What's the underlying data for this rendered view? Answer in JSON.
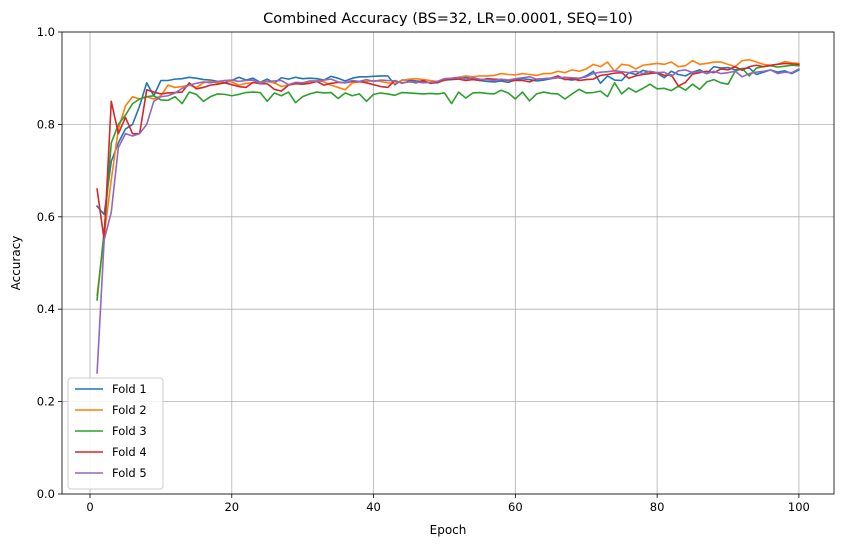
{
  "chart_data": {
    "type": "line",
    "title": "Combined Accuracy (BS=32, LR=0.0001, SEQ=10)",
    "xlabel": "Epoch",
    "ylabel": "Accuracy",
    "xlim": [
      -3.95,
      104.95
    ],
    "ylim": [
      0.0,
      1.0
    ],
    "xticks": [
      0,
      20,
      40,
      60,
      80,
      100
    ],
    "yticks": [
      0.0,
      0.2,
      0.4,
      0.6,
      0.8,
      1.0
    ],
    "xtick_labels": [
      "0",
      "20",
      "40",
      "60",
      "80",
      "100"
    ],
    "ytick_labels": [
      "0.0",
      "0.2",
      "0.4",
      "0.6",
      "0.8",
      "1.0"
    ],
    "grid": true,
    "legend_position": "lower-left",
    "x_start": 1,
    "series": [
      {
        "name": "Fold 1",
        "color": "#1f77b4",
        "values": [
          0.623,
          0.605,
          0.72,
          0.76,
          0.79,
          0.8,
          0.84,
          0.89,
          0.862,
          0.895,
          0.895,
          0.898,
          0.899,
          0.902,
          0.9,
          0.897,
          0.896,
          0.893,
          0.89,
          0.895,
          0.902,
          0.896,
          0.9,
          0.891,
          0.898,
          0.889,
          0.901,
          0.898,
          0.902,
          0.899,
          0.9,
          0.899,
          0.896,
          0.904,
          0.9,
          0.894,
          0.9,
          0.903,
          0.903,
          0.904,
          0.905,
          0.905,
          0.886,
          0.896,
          0.896,
          0.894,
          0.893,
          0.89,
          0.89,
          0.896,
          0.897,
          0.898,
          0.902,
          0.899,
          0.895,
          0.893,
          0.892,
          0.894,
          0.891,
          0.896,
          0.899,
          0.897,
          0.894,
          0.896,
          0.899,
          0.901,
          0.898,
          0.896,
          0.899,
          0.905,
          0.915,
          0.889,
          0.905,
          0.896,
          0.895,
          0.912,
          0.908,
          0.917,
          0.913,
          0.911,
          0.901,
          0.915,
          0.908,
          0.905,
          0.913,
          0.918,
          0.91,
          0.925,
          0.922,
          0.923,
          0.918,
          0.921,
          0.922,
          0.908,
          0.913,
          0.918,
          0.913,
          0.916,
          0.91,
          0.918
        ]
      },
      {
        "name": "Fold 2",
        "color": "#ff7f0e",
        "values": [
          0.43,
          0.56,
          0.68,
          0.79,
          0.84,
          0.86,
          0.855,
          0.86,
          0.855,
          0.862,
          0.885,
          0.88,
          0.882,
          0.885,
          0.88,
          0.89,
          0.893,
          0.89,
          0.895,
          0.892,
          0.885,
          0.889,
          0.89,
          0.891,
          0.893,
          0.89,
          0.882,
          0.885,
          0.89,
          0.888,
          0.893,
          0.895,
          0.892,
          0.885,
          0.88,
          0.875,
          0.89,
          0.892,
          0.893,
          0.895,
          0.893,
          0.89,
          0.889,
          0.895,
          0.898,
          0.899,
          0.897,
          0.895,
          0.893,
          0.895,
          0.899,
          0.902,
          0.905,
          0.903,
          0.905,
          0.905,
          0.906,
          0.91,
          0.908,
          0.907,
          0.91,
          0.908,
          0.906,
          0.91,
          0.91,
          0.915,
          0.912,
          0.918,
          0.915,
          0.92,
          0.93,
          0.925,
          0.935,
          0.915,
          0.93,
          0.928,
          0.92,
          0.928,
          0.93,
          0.932,
          0.93,
          0.935,
          0.925,
          0.927,
          0.938,
          0.93,
          0.932,
          0.935,
          0.935,
          0.93,
          0.925,
          0.938,
          0.94,
          0.935,
          0.93,
          0.928,
          0.93,
          0.936,
          0.933,
          0.932
        ]
      },
      {
        "name": "Fold 3",
        "color": "#2ca02c",
        "values": [
          0.42,
          0.57,
          0.76,
          0.8,
          0.82,
          0.845,
          0.855,
          0.86,
          0.862,
          0.853,
          0.852,
          0.86,
          0.845,
          0.87,
          0.865,
          0.85,
          0.86,
          0.866,
          0.865,
          0.862,
          0.865,
          0.869,
          0.87,
          0.869,
          0.85,
          0.868,
          0.862,
          0.87,
          0.847,
          0.86,
          0.866,
          0.87,
          0.868,
          0.869,
          0.856,
          0.868,
          0.862,
          0.866,
          0.85,
          0.865,
          0.868,
          0.866,
          0.863,
          0.869,
          0.868,
          0.867,
          0.866,
          0.867,
          0.866,
          0.868,
          0.845,
          0.87,
          0.857,
          0.868,
          0.869,
          0.867,
          0.866,
          0.874,
          0.868,
          0.855,
          0.87,
          0.851,
          0.866,
          0.87,
          0.867,
          0.866,
          0.855,
          0.866,
          0.876,
          0.868,
          0.869,
          0.872,
          0.86,
          0.89,
          0.866,
          0.879,
          0.87,
          0.878,
          0.887,
          0.877,
          0.878,
          0.873,
          0.883,
          0.874,
          0.887,
          0.876,
          0.892,
          0.897,
          0.89,
          0.887,
          0.915,
          0.921,
          0.905,
          0.922,
          0.925,
          0.927,
          0.924,
          0.926,
          0.928,
          0.927
        ]
      },
      {
        "name": "Fold 4",
        "color": "#d62728",
        "values": [
          0.66,
          0.55,
          0.85,
          0.78,
          0.815,
          0.78,
          0.78,
          0.875,
          0.87,
          0.866,
          0.868,
          0.869,
          0.87,
          0.89,
          0.877,
          0.88,
          0.885,
          0.887,
          0.89,
          0.886,
          0.882,
          0.88,
          0.891,
          0.888,
          0.888,
          0.876,
          0.872,
          0.885,
          0.888,
          0.887,
          0.889,
          0.893,
          0.885,
          0.889,
          0.891,
          0.89,
          0.893,
          0.893,
          0.89,
          0.886,
          0.882,
          0.88,
          0.895,
          0.889,
          0.893,
          0.89,
          0.895,
          0.889,
          0.891,
          0.896,
          0.898,
          0.898,
          0.895,
          0.897,
          0.895,
          0.899,
          0.898,
          0.897,
          0.895,
          0.895,
          0.895,
          0.892,
          0.898,
          0.899,
          0.9,
          0.905,
          0.897,
          0.899,
          0.895,
          0.897,
          0.898,
          0.906,
          0.908,
          0.911,
          0.912,
          0.9,
          0.905,
          0.908,
          0.91,
          0.912,
          0.906,
          0.907,
          0.883,
          0.891,
          0.909,
          0.912,
          0.915,
          0.912,
          0.92,
          0.918,
          0.925,
          0.917,
          0.925,
          0.928,
          0.925,
          0.928,
          0.93,
          0.932,
          0.931,
          0.93
        ]
      },
      {
        "name": "Fold 5",
        "color": "#9467bd",
        "values": [
          0.262,
          0.55,
          0.61,
          0.75,
          0.78,
          0.775,
          0.78,
          0.8,
          0.85,
          0.86,
          0.862,
          0.868,
          0.878,
          0.885,
          0.889,
          0.892,
          0.89,
          0.893,
          0.895,
          0.896,
          0.893,
          0.895,
          0.896,
          0.889,
          0.893,
          0.894,
          0.895,
          0.886,
          0.891,
          0.89,
          0.894,
          0.893,
          0.896,
          0.898,
          0.892,
          0.89,
          0.895,
          0.893,
          0.897,
          0.893,
          0.896,
          0.895,
          0.894,
          0.89,
          0.892,
          0.892,
          0.89,
          0.891,
          0.893,
          0.899,
          0.9,
          0.902,
          0.898,
          0.901,
          0.898,
          0.897,
          0.895,
          0.898,
          0.896,
          0.899,
          0.901,
          0.903,
          0.898,
          0.899,
          0.9,
          0.901,
          0.902,
          0.901,
          0.9,
          0.903,
          0.91,
          0.913,
          0.914,
          0.916,
          0.914,
          0.912,
          0.915,
          0.91,
          0.915,
          0.912,
          0.913,
          0.904,
          0.916,
          0.918,
          0.912,
          0.915,
          0.91,
          0.915,
          0.91,
          0.912,
          0.915,
          0.903,
          0.91,
          0.913,
          0.915,
          0.918,
          0.91,
          0.913,
          0.912,
          0.92
        ]
      }
    ]
  }
}
